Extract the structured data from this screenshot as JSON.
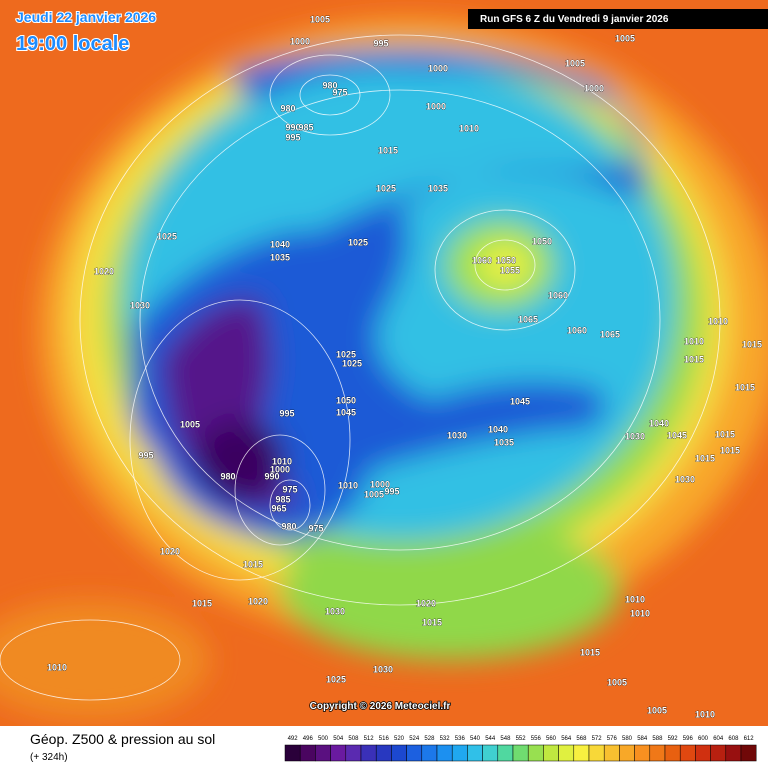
{
  "header": {
    "valid_time": "Jeudi 22 janvier 2026",
    "local_time": "19:00 locale",
    "run": "Run GFS 6 Z du Vendredi 9 janvier 2026"
  },
  "copyright": "Copyright © 2026 Meteociel.fr",
  "footer": {
    "title": "Géop. Z500 & pression au sol",
    "lead": "(+ 324h)"
  },
  "legend": {
    "levels": [
      492,
      496,
      500,
      504,
      508,
      512,
      516,
      520,
      524,
      528,
      532,
      536,
      540,
      544,
      548,
      552,
      556,
      560,
      564,
      568,
      572,
      576,
      580,
      584,
      588,
      592,
      596,
      600,
      604,
      608,
      612
    ],
    "colors": [
      "#2a003a",
      "#4a0560",
      "#5a1080",
      "#6a1aa0",
      "#5a2ab0",
      "#3a30b8",
      "#2838c0",
      "#1c48d0",
      "#1c60e0",
      "#1c78ea",
      "#1c90f0",
      "#20a8f0",
      "#30c0e8",
      "#40d0d0",
      "#50d8a0",
      "#70dc70",
      "#98e050",
      "#c0e840",
      "#e0f040",
      "#f8f040",
      "#f8d838",
      "#f8c030",
      "#f8a828",
      "#f89020",
      "#f07818",
      "#e86010",
      "#e04810",
      "#d03010",
      "#b82010",
      "#981010",
      "#700808"
    ]
  },
  "pressure_labels": [
    1005,
    1000,
    995,
    1005,
    1005,
    1000,
    1000,
    980,
    975,
    980,
    1000,
    990,
    985,
    995,
    1010,
    1015,
    1025,
    1035,
    1025,
    1040,
    1035,
    1025,
    1050,
    1060,
    1050,
    1055,
    1020,
    1060,
    1030,
    1065,
    1060,
    1065,
    1010,
    1015,
    1010,
    1015,
    1025,
    1025,
    1015,
    1050,
    1045,
    995,
    1005,
    1045,
    1040,
    1030,
    1035,
    1030,
    1040,
    1045,
    1015,
    1015,
    1015,
    995,
    1010,
    1000,
    980,
    990,
    1000,
    1010,
    1005,
    995,
    975,
    985,
    965,
    980,
    975,
    1030,
    1020,
    1015,
    1015,
    1020,
    1030,
    1020,
    1015,
    1010,
    1010,
    1015,
    1010,
    1030,
    1025,
    1005,
    1005,
    1010
  ]
}
